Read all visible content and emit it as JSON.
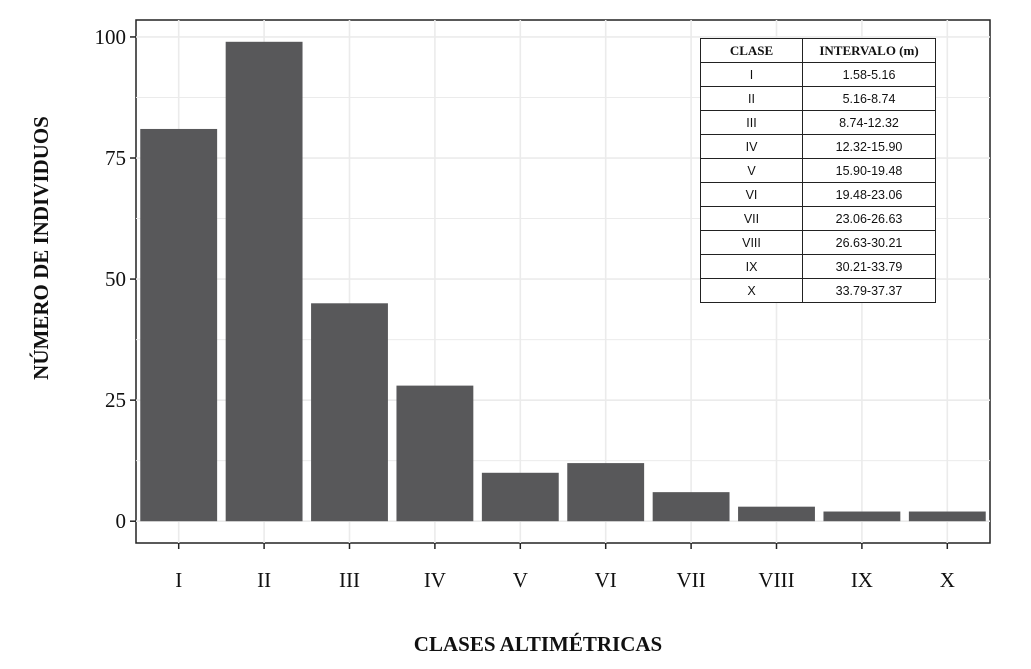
{
  "chart_data": {
    "type": "bar",
    "title": "",
    "xlabel": "CLASES ALTIMÉTRICAS",
    "ylabel": "NÚMERO DE INDIVIDUOS",
    "categories": [
      "I",
      "II",
      "III",
      "IV",
      "V",
      "VI",
      "VII",
      "VIII",
      "IX",
      "X"
    ],
    "values": [
      81,
      99,
      45,
      28,
      10,
      12,
      6,
      3,
      2,
      2
    ],
    "ylim": [
      -4.5,
      103.5
    ],
    "yticks": [
      "0",
      "25",
      "50",
      "75",
      "100"
    ],
    "grid": true,
    "bar_color": "#58585a",
    "grid_color": "#ebebeb",
    "inset_table": {
      "position": "top-right",
      "headers": [
        "CLASE",
        "INTERVALO (m)"
      ],
      "rows": [
        [
          "I",
          "1.58-5.16"
        ],
        [
          "II",
          "5.16-8.74"
        ],
        [
          "III",
          "8.74-12.32"
        ],
        [
          "IV",
          "12.32-15.90"
        ],
        [
          "V",
          "15.90-19.48"
        ],
        [
          "VI",
          "19.48-23.06"
        ],
        [
          "VII",
          "23.06-26.63"
        ],
        [
          "VIII",
          "26.63-30.21"
        ],
        [
          "IX",
          "30.21-33.79"
        ],
        [
          "X",
          "33.79-37.37"
        ]
      ]
    }
  }
}
